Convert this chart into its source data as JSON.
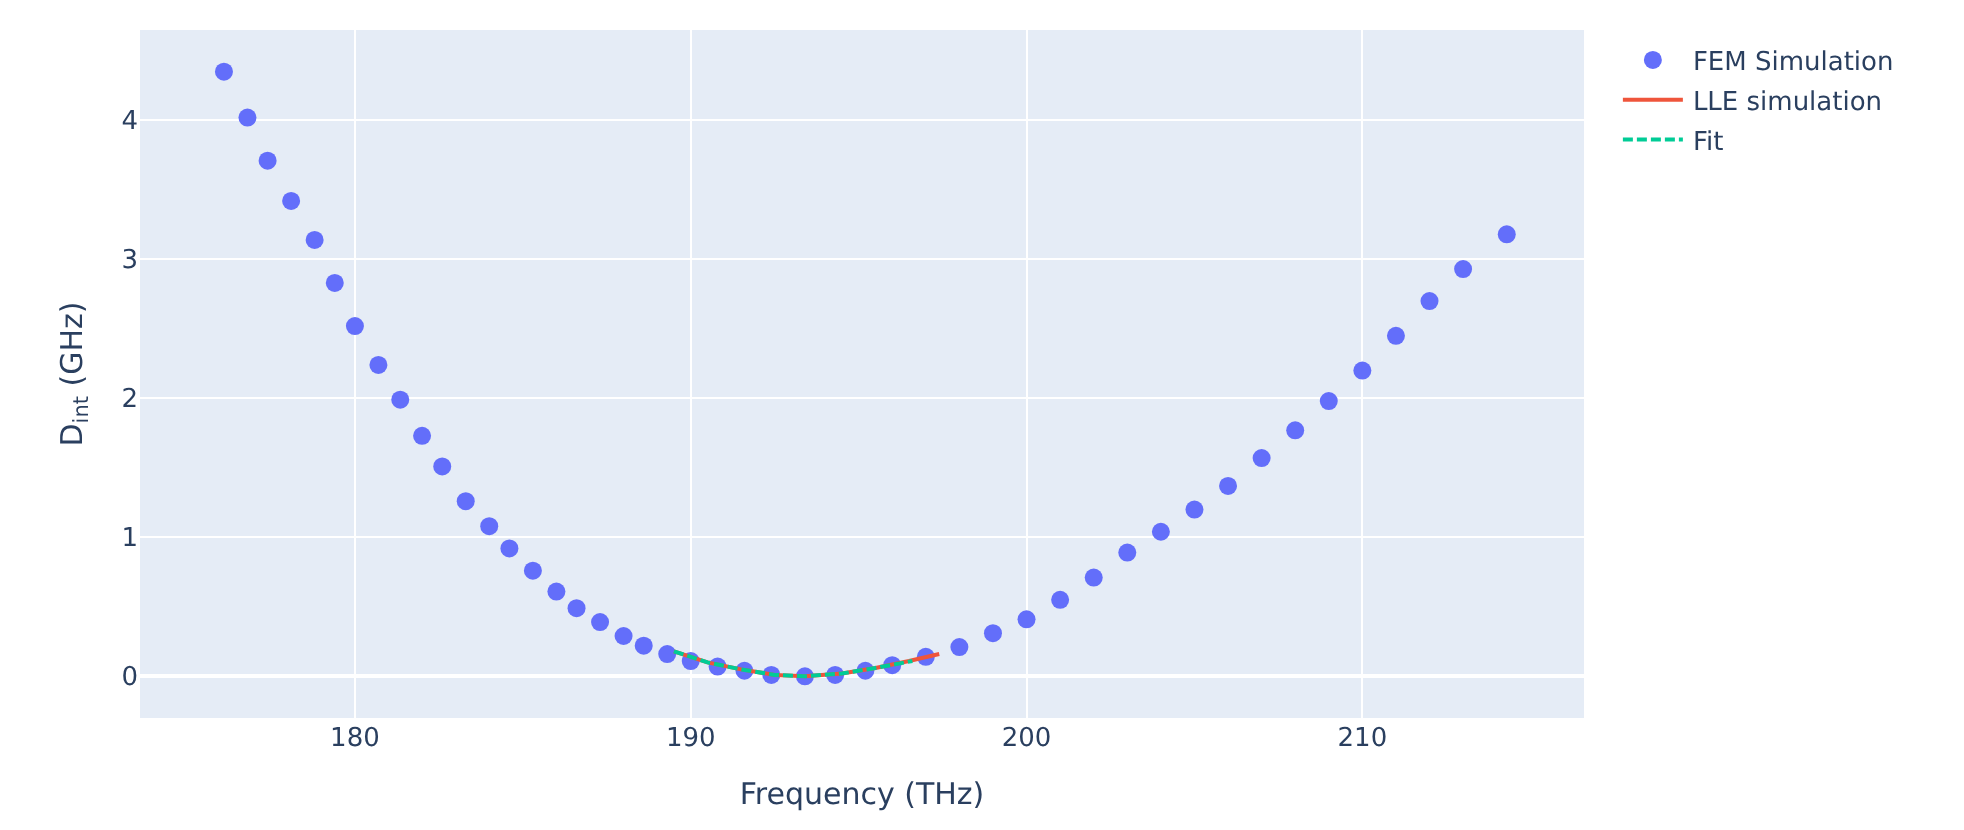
{
  "chart_data": {
    "type": "scatter",
    "xlabel": "Frequency (THz)",
    "ylabel": "D$_{int}$ (GHz)",
    "xlim": [
      173.6,
      216.6
    ],
    "xticks": [
      180,
      190,
      200,
      210
    ],
    "ylim": [
      -0.3,
      4.65
    ],
    "yticks": [
      0,
      1,
      2,
      3,
      4
    ],
    "grid": true,
    "legend": "top right",
    "series": [
      {
        "name": "FEM Simulation",
        "marker": "circle",
        "color": "#636efa",
        "x": [
          176.1,
          176.8,
          177.4,
          178.1,
          178.8,
          179.4,
          180.0,
          180.7,
          181.35,
          182.0,
          182.6,
          183.3,
          184.0,
          184.6,
          185.3,
          186.0,
          186.6,
          187.3,
          188.0,
          188.6,
          189.3,
          190.0,
          190.8,
          191.6,
          192.4,
          193.4,
          194.3,
          195.2,
          196.0,
          197.0,
          198.0,
          199.0,
          200.0,
          201.0,
          202.0,
          203.0,
          204.0,
          205.0,
          206.0,
          207.0,
          208.0,
          209.0,
          210.0,
          211.0,
          212.0,
          213.0,
          214.3
        ],
        "values": [
          4.35,
          4.02,
          3.71,
          3.42,
          3.14,
          2.83,
          2.52,
          2.24,
          1.99,
          1.73,
          1.51,
          1.26,
          1.08,
          0.92,
          0.76,
          0.61,
          0.49,
          0.39,
          0.29,
          0.22,
          0.16,
          0.11,
          0.07,
          0.04,
          0.01,
          0.0,
          0.01,
          0.04,
          0.08,
          0.14,
          0.21,
          0.31,
          0.41,
          0.55,
          0.71,
          0.89,
          1.04,
          1.2,
          1.37,
          1.57,
          1.77,
          1.98,
          2.2,
          2.45,
          2.7,
          2.93,
          3.18
        ]
      },
      {
        "name": "LLE simulation",
        "type": "line",
        "line_style": "solid",
        "color": "#ef553b",
        "x": [
          189.5,
          190.5,
          191.5,
          192.5,
          193.4,
          194.5,
          195.5,
          196.5,
          197.4
        ],
        "values": [
          0.18,
          0.1,
          0.05,
          0.01,
          0.0,
          0.02,
          0.06,
          0.11,
          0.16
        ]
      },
      {
        "name": "Fit",
        "type": "line",
        "line_style": "dashed",
        "color": "#00cc96",
        "x": [
          189.5,
          190.5,
          191.5,
          192.5,
          193.4,
          194.5,
          195.5,
          196.6
        ],
        "values": [
          0.18,
          0.1,
          0.05,
          0.01,
          0.0,
          0.02,
          0.06,
          0.11
        ]
      }
    ]
  }
}
